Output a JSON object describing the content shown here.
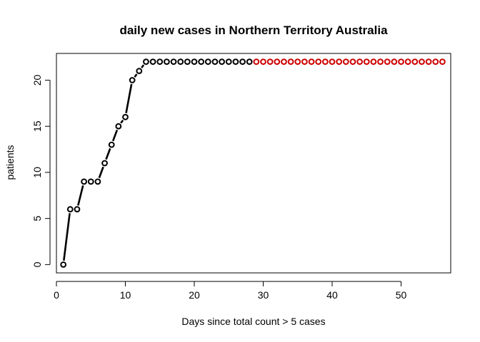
{
  "chart_data": {
    "type": "scatter",
    "title": "daily new cases in  Northern Territory Australia",
    "xlabel": "Days since total count > 5 cases",
    "ylabel": "patients",
    "xlim": [
      0,
      57.2
    ],
    "ylim": [
      -0.9,
      22.9
    ],
    "xticks": [
      0,
      10,
      20,
      30,
      40,
      50
    ],
    "yticks": [
      0,
      5,
      10,
      15,
      20
    ],
    "grid": false,
    "legend": "none",
    "series": [
      {
        "color": "#000000",
        "x": [
          1,
          2,
          3,
          4,
          5,
          6,
          7,
          8,
          9,
          10,
          11,
          12,
          13,
          14,
          15,
          16,
          17,
          18,
          19,
          20,
          21,
          22,
          23,
          24,
          25,
          26,
          27,
          28
        ],
        "y": [
          0,
          6,
          6,
          9,
          9,
          9,
          11,
          13,
          15,
          16,
          20,
          21,
          22,
          22,
          22,
          22,
          22,
          22,
          22,
          22,
          22,
          22,
          22,
          22,
          22,
          22,
          22,
          22
        ],
        "connected": true,
        "line_style": "dashed"
      },
      {
        "color": "#cc0000",
        "x": [
          29,
          30,
          31,
          32,
          33,
          34,
          35,
          36,
          37,
          38,
          39,
          40,
          41,
          42,
          43,
          44,
          45,
          46,
          47,
          48,
          49,
          50,
          51,
          52,
          53,
          54,
          55,
          56
        ],
        "y": [
          22,
          22,
          22,
          22,
          22,
          22,
          22,
          22,
          22,
          22,
          22,
          22,
          22,
          22,
          22,
          22,
          22,
          22,
          22,
          22,
          22,
          22,
          22,
          22,
          22,
          22,
          22,
          22
        ],
        "connected": false
      }
    ]
  }
}
